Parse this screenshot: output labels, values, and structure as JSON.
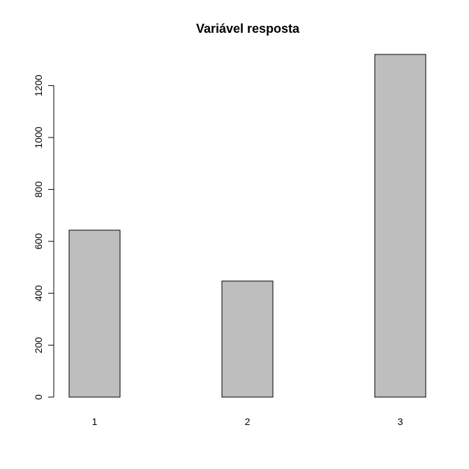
{
  "chart_data": {
    "type": "bar",
    "title": "Variável resposta",
    "xlabel": "",
    "ylabel": "",
    "categories": [
      "1",
      "2",
      "3"
    ],
    "values": [
      643,
      447,
      1320
    ],
    "ylim": [
      0,
      1320
    ],
    "yticks": [
      0,
      200,
      400,
      600,
      800,
      1000,
      1200
    ],
    "bar_color": "#bebebe",
    "border_color": "#000000",
    "grid": false,
    "legend": "none"
  }
}
